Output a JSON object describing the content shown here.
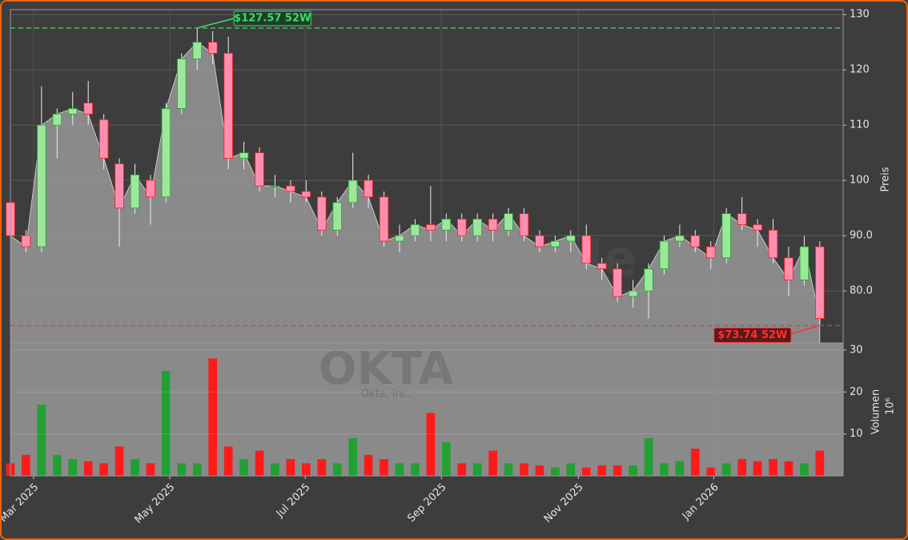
{
  "chart_data": {
    "type": "candlestick",
    "watermark": "forexsignale.trade",
    "ticker": "OKTA",
    "company": "Okta, Inc.",
    "ylabel": "Preis",
    "volume_label": "Volumen",
    "volume_unit": "10⁶",
    "x": [
      0,
      1,
      2,
      3,
      4,
      5,
      6,
      7,
      8,
      9,
      10,
      11,
      12,
      13,
      14,
      15,
      16,
      17,
      18,
      19,
      20,
      21,
      22,
      23,
      24,
      25,
      26,
      27,
      28,
      29,
      30,
      31,
      32,
      33,
      34,
      35,
      36,
      37,
      38,
      39,
      40,
      41,
      42,
      43,
      44,
      45,
      46,
      47,
      48,
      49,
      50,
      51,
      52
    ],
    "open": [
      96,
      90,
      88,
      110,
      112,
      114,
      111,
      103,
      95,
      100,
      97,
      113,
      122,
      125,
      123,
      104,
      105,
      99,
      99,
      98,
      97,
      91,
      96,
      100,
      97,
      89,
      90,
      92,
      91,
      93,
      90,
      93,
      91,
      94,
      90,
      88,
      89,
      90,
      85,
      84,
      79,
      80,
      84,
      89,
      90,
      88,
      86,
      94,
      92,
      91,
      86,
      82,
      88
    ],
    "high": [
      97,
      91,
      117,
      113,
      116,
      118,
      112,
      104,
      103,
      101,
      114,
      123,
      127.57,
      127,
      126,
      107,
      106,
      101,
      100,
      100,
      98,
      97,
      105,
      101,
      98,
      92,
      93,
      99,
      94,
      94,
      94,
      94,
      95,
      95,
      91,
      90,
      91,
      92,
      86,
      85,
      82,
      85,
      90,
      92,
      91,
      89,
      95,
      97,
      93,
      93,
      88,
      90,
      89
    ],
    "low": [
      88,
      87,
      87,
      104,
      110,
      110,
      102,
      88,
      94,
      92,
      96,
      112,
      120,
      121,
      102,
      102,
      98,
      97,
      96,
      96,
      90,
      90,
      95,
      95,
      88,
      87,
      89,
      89,
      89,
      89,
      89,
      89,
      90,
      89,
      87,
      87,
      87,
      84,
      82,
      78,
      77,
      75,
      83,
      88,
      87,
      84,
      85,
      91,
      88,
      85,
      79,
      81,
      73.74
    ],
    "close": [
      90,
      88,
      110,
      112,
      113,
      112,
      104,
      95,
      101,
      97,
      113,
      122,
      125,
      123,
      104,
      105,
      99,
      99,
      98,
      97,
      91,
      96,
      100,
      97,
      89,
      90,
      92,
      91,
      93,
      90,
      93,
      91,
      94,
      90,
      88,
      89,
      90,
      85,
      84,
      79,
      80,
      84,
      89,
      90,
      88,
      86,
      94,
      92,
      91,
      86,
      82,
      88,
      75
    ],
    "volume": [
      3,
      5,
      17,
      5,
      4,
      3.5,
      3,
      7,
      4,
      3,
      25,
      3,
      3,
      28,
      7,
      4,
      6,
      3,
      4,
      3,
      4,
      3,
      9,
      5,
      4,
      3,
      3,
      15,
      8,
      3,
      3,
      6,
      3,
      3,
      2.5,
      2,
      3,
      2,
      2.5,
      2.5,
      2.5,
      9,
      3,
      3.5,
      6.5,
      2,
      3,
      4,
      3.5,
      4,
      3.5,
      3,
      6
    ],
    "up_color": "#22a033",
    "down_color": "#ff1a1a",
    "area_color": "#8a8a8a",
    "xlim": [
      0,
      53.5
    ],
    "xticks": [
      {
        "value": 1.49,
        "label": "Mar 2025"
      },
      {
        "value": 10.24,
        "label": "May 2025"
      },
      {
        "value": 18.94,
        "label": "Jul 2025"
      },
      {
        "value": 27.69,
        "label": "Sep 2025"
      },
      {
        "value": 36.49,
        "label": "Nov 2025"
      },
      {
        "value": 45.19,
        "label": "Jan 2026"
      }
    ],
    "ylim": [
      70.6,
      130.9
    ],
    "yticks": [
      {
        "value": 80,
        "label": "80.0"
      },
      {
        "value": 90,
        "label": "90.0"
      },
      100,
      110,
      120,
      130
    ],
    "volume_ylim": [
      0,
      31.7
    ],
    "volume_yticks": [
      10,
      20,
      30
    ],
    "grid": true,
    "annotations": [
      {
        "text": "$127.57 52W",
        "value": 127.57,
        "color": "#3ddc6a"
      },
      {
        "text": "$73.74 52W",
        "value": 73.74,
        "color": "#ff3030"
      }
    ]
  }
}
